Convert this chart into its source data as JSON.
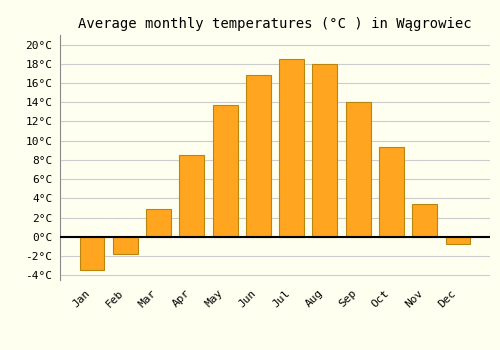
{
  "title": "Average monthly temperatures (°C ) in Wągrowiec",
  "months": [
    "Jan",
    "Feb",
    "Mar",
    "Apr",
    "May",
    "Jun",
    "Jul",
    "Aug",
    "Sep",
    "Oct",
    "Nov",
    "Dec"
  ],
  "temperatures": [
    -3.5,
    -1.8,
    2.9,
    8.5,
    13.7,
    16.8,
    18.5,
    18.0,
    14.0,
    9.3,
    3.4,
    -0.8
  ],
  "bar_color": "#FFA520",
  "bar_edge_color": "#B8860B",
  "background_color": "#FFFFF0",
  "grid_color": "#CCCCCC",
  "ylim": [
    -4.5,
    21
  ],
  "yticks": [
    -4,
    -2,
    0,
    2,
    4,
    6,
    8,
    10,
    12,
    14,
    16,
    18,
    20
  ],
  "title_fontsize": 10,
  "tick_fontsize": 8,
  "font_family": "monospace",
  "bar_width": 0.75
}
